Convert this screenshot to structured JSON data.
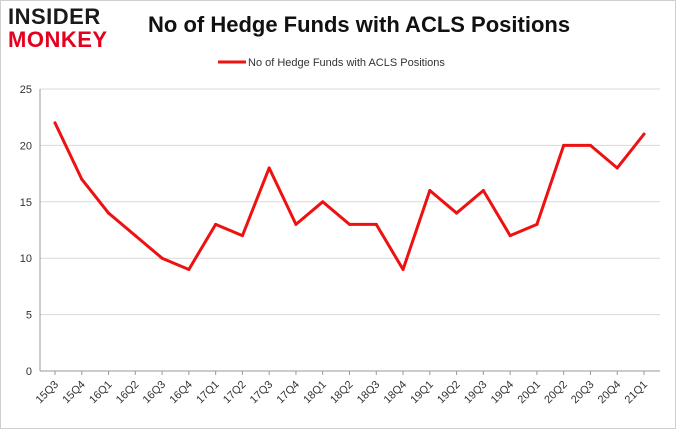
{
  "logo": {
    "line1": "INSIDER",
    "line2": "MONKEY"
  },
  "colors": {
    "series": "#ee1111",
    "grid": "#d9d9d9",
    "axis": "#999999",
    "logo_red": "#e4001f"
  },
  "chart_data": {
    "type": "line",
    "title": "No of Hedge Funds with ACLS Positions",
    "xlabel": "",
    "ylabel": "",
    "ylim": [
      0,
      25
    ],
    "yticks": [
      0,
      5,
      10,
      15,
      20,
      25
    ],
    "grid": true,
    "legend_position": "top-center",
    "categories": [
      "15Q3",
      "15Q4",
      "16Q1",
      "16Q2",
      "16Q3",
      "16Q4",
      "17Q1",
      "17Q2",
      "17Q3",
      "17Q4",
      "18Q1",
      "18Q2",
      "18Q3",
      "18Q4",
      "19Q1",
      "19Q2",
      "19Q3",
      "19Q4",
      "20Q1",
      "20Q2",
      "20Q3",
      "20Q4",
      "21Q1"
    ],
    "series": [
      {
        "name": "No of Hedge Funds with ACLS Positions",
        "values": [
          22,
          17,
          14,
          12,
          10,
          9,
          13,
          12,
          18,
          13,
          15,
          13,
          13,
          9,
          16,
          14,
          16,
          12,
          13,
          20,
          20,
          18,
          21
        ]
      }
    ]
  }
}
